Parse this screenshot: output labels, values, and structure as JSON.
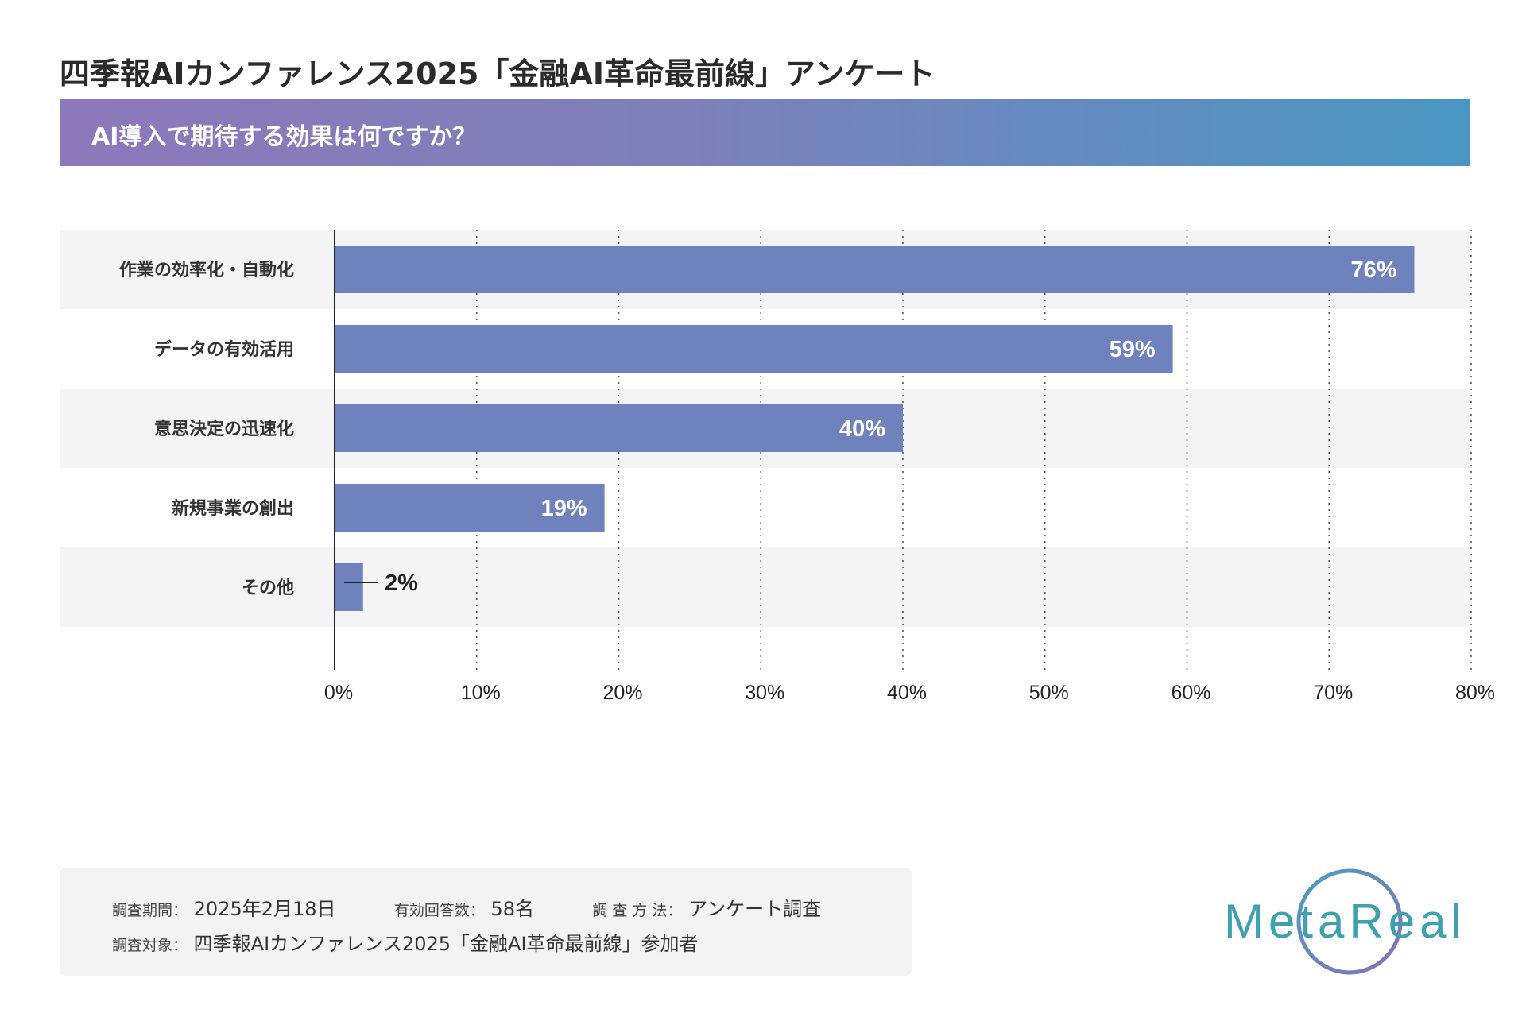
{
  "title": "四季報AIカンファレンス2025「金融AI革命最前線」アンケート",
  "question": "AI導入で期待する効果は何ですか？",
  "colors": {
    "bar": "#6f82bd",
    "band": "#f4f4f4",
    "banner_start": "#8d78bb",
    "banner_end": "#4a97c3",
    "logo_text": "#3fa0ae",
    "logo_ring_start": "#4a9fc0",
    "logo_ring_end": "#8b6fb6"
  },
  "chart_data": {
    "type": "bar",
    "orientation": "horizontal",
    "categories": [
      "作業の効率化・自動化",
      "データの有効活用",
      "意思決定の迅速化",
      "新規事業の創出",
      "その他"
    ],
    "values": [
      76,
      59,
      40,
      19,
      2
    ],
    "value_labels": [
      "76%",
      "59%",
      "40%",
      "19%",
      "2%"
    ],
    "xlim": [
      0,
      80
    ],
    "xticks": [
      0,
      10,
      20,
      30,
      40,
      50,
      60,
      70,
      80
    ],
    "xtick_labels": [
      "0%",
      "10%",
      "20%",
      "30%",
      "40%",
      "50%",
      "60%",
      "70%",
      "80%"
    ],
    "grid": "vertical dotted",
    "xlabel": "",
    "ylabel": ""
  },
  "footer": {
    "period_label": "調査期間：",
    "period_value": "2025年2月18日",
    "responses_label": "有効回答数：",
    "responses_value": "58名",
    "method_label": "調 査 方 法：",
    "method_value": "アンケート調査",
    "target_label": "調査対象：",
    "target_value": "四季報AIカンファレンス2025「金融AI革命最前線」参加者"
  },
  "logo": {
    "text": "MetaReal"
  }
}
